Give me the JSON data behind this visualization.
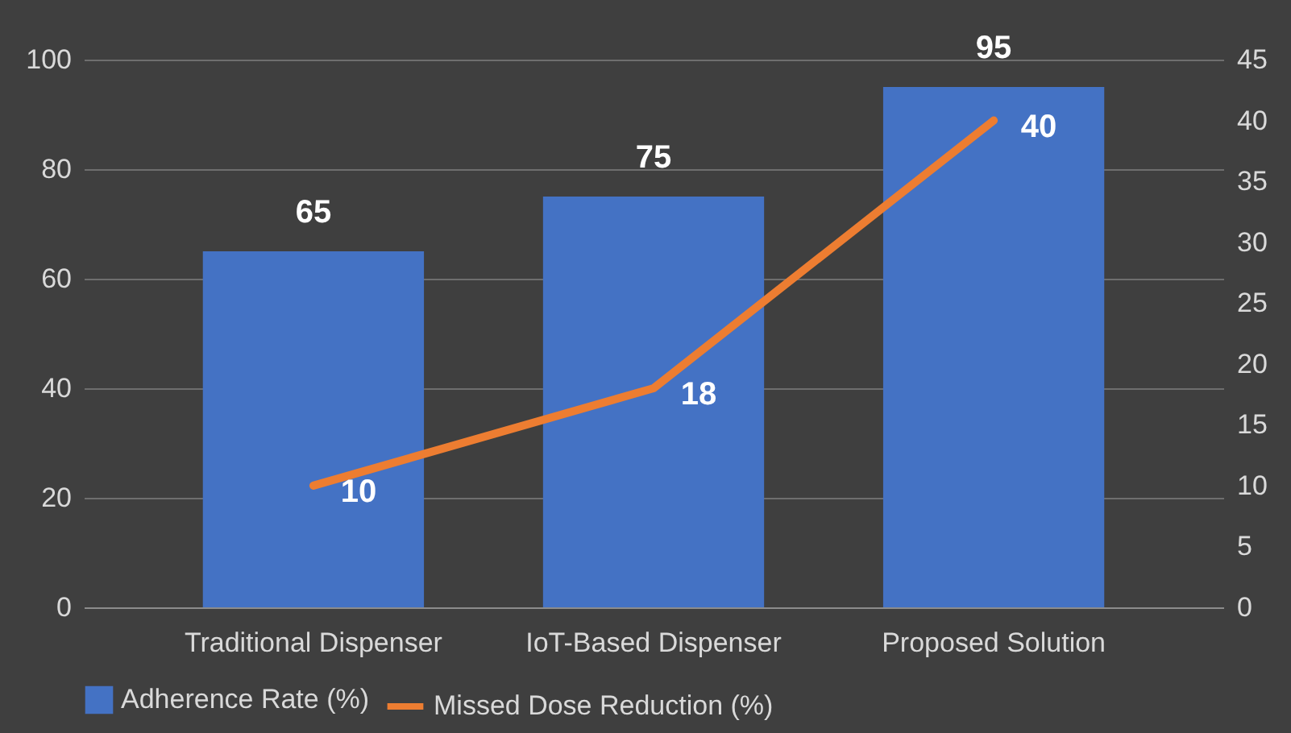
{
  "chart_data": {
    "type": "bar",
    "categories": [
      "Traditional Dispenser",
      "IoT-Based Dispenser",
      "Proposed Solution"
    ],
    "series": [
      {
        "name": "Adherence Rate (%)",
        "color": "#4472c4",
        "values": [
          65,
          75,
          95
        ]
      },
      {
        "name": "Missed Dose Reduction (%)",
        "type": "line",
        "axis": "y2",
        "color": "#ed7d31",
        "values": [
          10,
          18,
          40
        ]
      }
    ],
    "ylim": [
      0,
      100
    ],
    "yticks": [
      0,
      20,
      40,
      60,
      80,
      100
    ],
    "y2lim": [
      0,
      45
    ],
    "y2ticks": [
      0,
      5,
      10,
      15,
      20,
      25,
      30,
      35,
      40,
      45
    ],
    "grid": "y",
    "legend": "bottom",
    "data_labels": true,
    "line_style": "solid"
  }
}
